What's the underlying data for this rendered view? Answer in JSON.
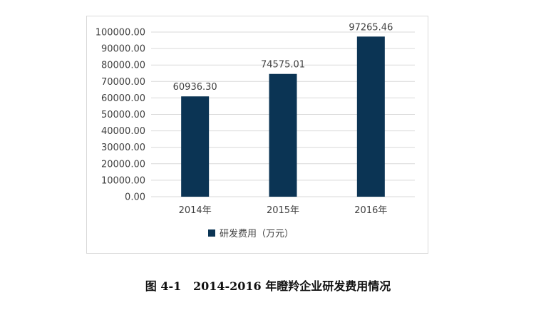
{
  "chart_data": {
    "type": "bar",
    "categories": [
      "2014年",
      "2015年",
      "2016年"
    ],
    "series": [
      {
        "name": "研发费用（万元）",
        "values": [
          60936.3,
          74575.01,
          97265.46
        ]
      }
    ],
    "data_labels": [
      "60936.30",
      "74575.01",
      "97265.46"
    ],
    "y_ticks": [
      "0.00",
      "10000.00",
      "20000.00",
      "30000.00",
      "40000.00",
      "50000.00",
      "60000.00",
      "70000.00",
      "80000.00",
      "90000.00",
      "100000.00"
    ],
    "ylim": [
      0,
      100000
    ],
    "ystep": 10000,
    "grid": true,
    "legend_position": "bottom",
    "bar_color": "#0b3454"
  },
  "caption": {
    "figure_number": "图 4-1",
    "text": "2014-2016 年瞪羚企业研发费用情况"
  }
}
